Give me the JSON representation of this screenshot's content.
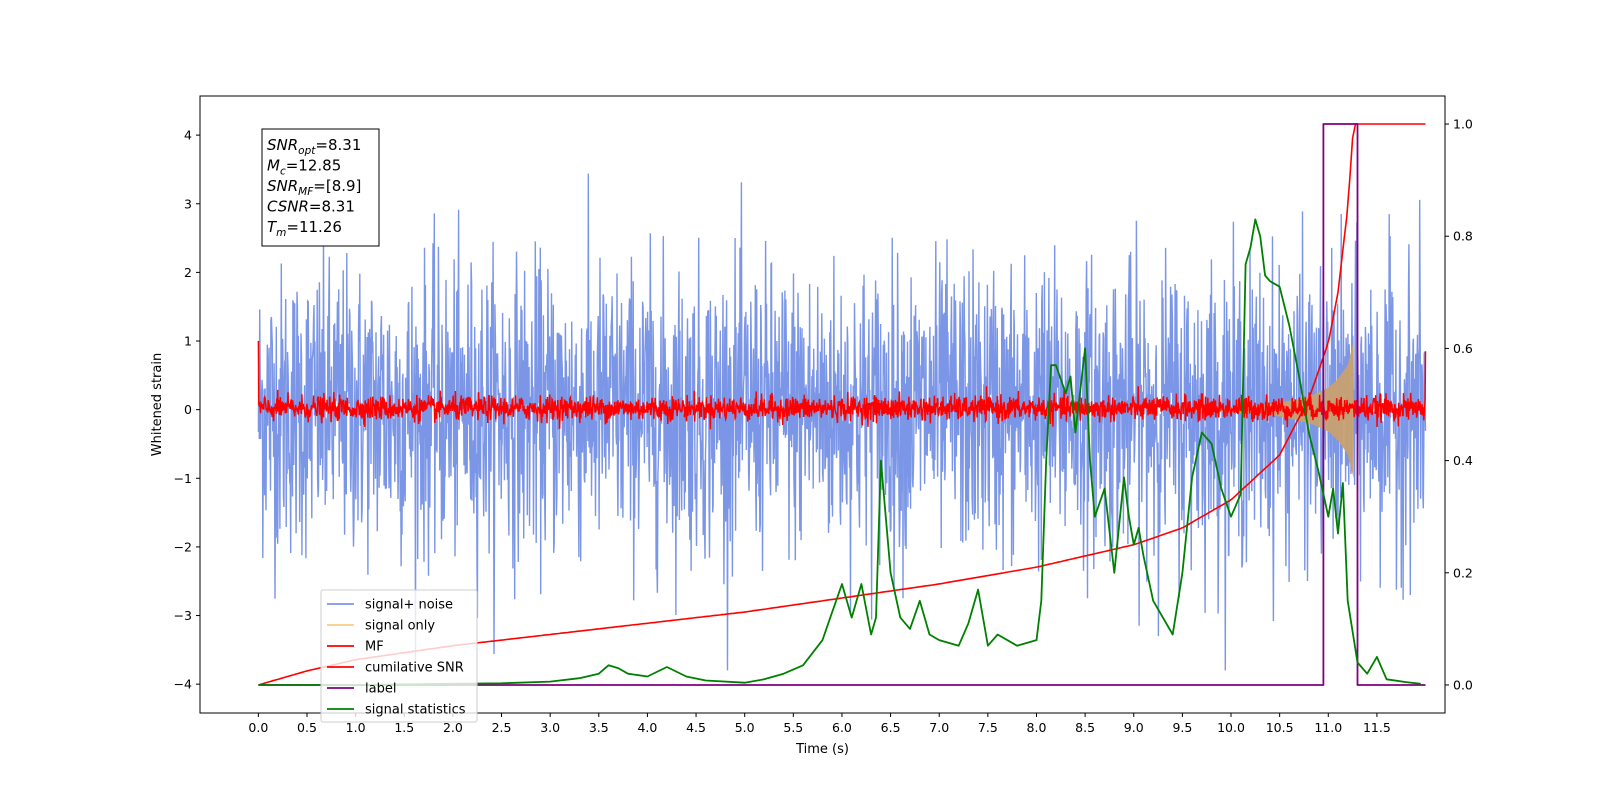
{
  "chart_data": {
    "type": "line",
    "xlabel": "Time (s)",
    "ylabel": "Whitened strain",
    "xlim": [
      -0.6,
      12.2
    ],
    "ylim": [
      -4.42,
      4.57
    ],
    "ylim_right": [
      -0.05,
      1.05
    ],
    "x_ticks": [
      0.0,
      0.5,
      1.0,
      1.5,
      2.0,
      2.5,
      3.0,
      3.5,
      4.0,
      4.5,
      5.0,
      5.5,
      6.0,
      6.5,
      7.0,
      7.5,
      8.0,
      8.5,
      9.0,
      9.5,
      10.0,
      10.5,
      11.0,
      11.5
    ],
    "x_tick_labels": [
      "0.0",
      "0.5",
      "1.0",
      "1.5",
      "2.0",
      "2.5",
      "3.0",
      "3.5",
      "4.0",
      "4.5",
      "5.0",
      "5.5",
      "6.0",
      "6.5",
      "7.0",
      "7.5",
      "8.0",
      "8.5",
      "9.0",
      "9.5",
      "10.0",
      "10.5",
      "11.0",
      "11.5"
    ],
    "y_ticks": [
      -4,
      -3,
      -2,
      -1,
      0,
      1,
      2,
      3,
      4
    ],
    "y_tick_labels": [
      "−4",
      "−3",
      "−2",
      "−1",
      "0",
      "1",
      "2",
      "3",
      "4"
    ],
    "y_right_ticks": [
      0.0,
      0.2,
      0.4,
      0.6,
      0.8,
      1.0
    ],
    "y_right_tick_labels": [
      "0.0",
      "0.2",
      "0.4",
      "0.6",
      "0.8",
      "1.0"
    ],
    "grid": false,
    "legend_position": "lower-left",
    "series": [
      {
        "name": "signal+ noise",
        "axis": "left",
        "color": "#7b96e6",
        "description": "dense noisy whitened strain, roughly within -3.8 to 4.0",
        "x_range": [
          0.0,
          12.0
        ],
        "amplitude_envelope": [
          -3.8,
          4.0
        ]
      },
      {
        "name": "signal only",
        "axis": "left",
        "color": "#f5cf84",
        "envelope_x": [
          9.5,
          10.0,
          10.3,
          10.5,
          10.7,
          10.85,
          11.0,
          11.1,
          11.2,
          11.26
        ],
        "envelope_amp": [
          0.02,
          0.04,
          0.07,
          0.1,
          0.16,
          0.22,
          0.32,
          0.45,
          0.65,
          1.0
        ]
      },
      {
        "name": "MF",
        "axis": "left",
        "color": "#ff0000",
        "description": "matched-filter output around 0, mostly within -0.2 to 0.3",
        "x_range": [
          0.0,
          12.0
        ],
        "edge_values": {
          "start": 1.0,
          "end": 0.85
        }
      },
      {
        "name": "cumilative SNR",
        "axis": "right",
        "color": "#ff0000",
        "x": [
          0.0,
          0.5,
          1.0,
          2.0,
          3.0,
          4.0,
          5.0,
          6.0,
          7.0,
          8.0,
          8.5,
          9.0,
          9.5,
          10.0,
          10.5,
          10.8,
          11.0,
          11.1,
          11.2,
          11.26,
          12.0
        ],
        "values": [
          0.0,
          0.025,
          0.045,
          0.07,
          0.09,
          0.11,
          0.13,
          0.155,
          0.18,
          0.21,
          0.23,
          0.25,
          0.28,
          0.33,
          0.41,
          0.51,
          0.61,
          0.7,
          0.85,
          1.0,
          1.0
        ]
      },
      {
        "name": "label",
        "axis": "right",
        "color": "#800080",
        "x": [
          0.0,
          10.95,
          10.95,
          11.3,
          11.3,
          12.0
        ],
        "values": [
          0,
          0,
          1,
          1,
          0,
          0
        ]
      },
      {
        "name": "signal statistics",
        "axis": "right",
        "color": "#008000",
        "x": [
          0.0,
          1.0,
          2.0,
          2.5,
          3.0,
          3.3,
          3.5,
          3.6,
          3.7,
          3.8,
          4.0,
          4.2,
          4.4,
          4.6,
          5.0,
          5.2,
          5.4,
          5.6,
          5.8,
          5.9,
          6.0,
          6.1,
          6.2,
          6.3,
          6.35,
          6.4,
          6.5,
          6.6,
          6.7,
          6.8,
          6.9,
          7.0,
          7.2,
          7.3,
          7.4,
          7.5,
          7.6,
          7.8,
          8.0,
          8.05,
          8.1,
          8.15,
          8.2,
          8.3,
          8.35,
          8.4,
          8.5,
          8.55,
          8.6,
          8.7,
          8.8,
          8.9,
          8.95,
          9.0,
          9.05,
          9.1,
          9.2,
          9.3,
          9.4,
          9.5,
          9.6,
          9.7,
          9.8,
          9.9,
          10.0,
          10.1,
          10.15,
          10.2,
          10.25,
          10.3,
          10.35,
          10.4,
          10.5,
          10.6,
          10.7,
          10.8,
          10.9,
          11.0,
          11.05,
          11.1,
          11.15,
          11.2,
          11.3,
          11.4,
          11.5,
          11.6,
          11.8,
          11.95
        ],
        "values": [
          0.0,
          0.0,
          0.002,
          0.003,
          0.006,
          0.012,
          0.02,
          0.035,
          0.03,
          0.02,
          0.015,
          0.032,
          0.015,
          0.008,
          0.004,
          0.01,
          0.02,
          0.035,
          0.08,
          0.13,
          0.18,
          0.12,
          0.18,
          0.09,
          0.12,
          0.4,
          0.2,
          0.12,
          0.1,
          0.15,
          0.09,
          0.08,
          0.07,
          0.11,
          0.17,
          0.07,
          0.09,
          0.07,
          0.08,
          0.15,
          0.4,
          0.57,
          0.57,
          0.52,
          0.55,
          0.45,
          0.6,
          0.4,
          0.3,
          0.35,
          0.2,
          0.37,
          0.3,
          0.25,
          0.28,
          0.23,
          0.15,
          0.12,
          0.09,
          0.2,
          0.37,
          0.45,
          0.43,
          0.35,
          0.3,
          0.34,
          0.75,
          0.78,
          0.83,
          0.8,
          0.73,
          0.72,
          0.71,
          0.64,
          0.55,
          0.45,
          0.38,
          0.3,
          0.35,
          0.27,
          0.36,
          0.15,
          0.04,
          0.02,
          0.05,
          0.01,
          0.005,
          0.002
        ]
      }
    ],
    "annotation_box": {
      "lines": [
        {
          "base": "SNR",
          "sub": "opt",
          "value": "=8.31"
        },
        {
          "base": "M",
          "sub": "c",
          "value": "=12.85"
        },
        {
          "base": "SNR",
          "sub": "MF",
          "value": "=[8.9]"
        },
        {
          "base": "CSNR",
          "sub": "",
          "value": "=8.31"
        },
        {
          "base": "T",
          "sub": "m",
          "value": "=11.26"
        }
      ]
    }
  }
}
